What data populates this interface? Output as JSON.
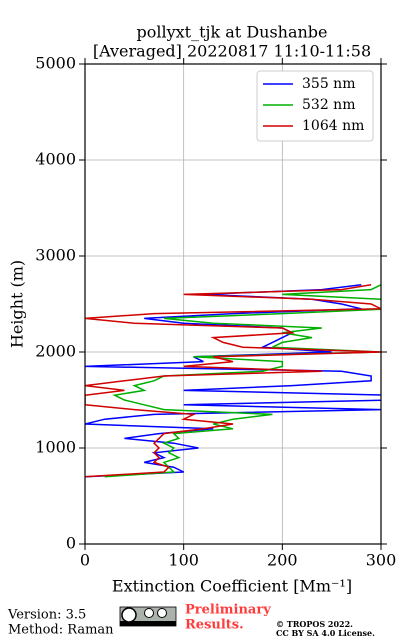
{
  "chart_data": {
    "type": "profile",
    "title": "pollyxt_tjk at Dushanbe",
    "subtitle": "[Averaged] 20220817 11:10-11:58",
    "xlabel": "Extinction Coefficient [Mm⁻¹]",
    "ylabel": "Height (m)",
    "xlim": [
      0,
      300
    ],
    "xticks": [
      0,
      100,
      200,
      300
    ],
    "ylim": [
      0,
      5000
    ],
    "yticks": [
      0,
      1000,
      2000,
      3000,
      4000,
      5000
    ],
    "grid": true,
    "legend": "upper right",
    "y": [
      700,
      750,
      800,
      850,
      900,
      950,
      1000,
      1050,
      1100,
      1150,
      1200,
      1250,
      1300,
      1350,
      1400,
      1450,
      1500,
      1550,
      1600,
      1650,
      1700,
      1750,
      1800,
      1850,
      1900,
      1950,
      2000,
      2050,
      2100,
      2150,
      2200,
      2250,
      2300,
      2350,
      2400,
      2450,
      2500,
      2550,
      2600,
      2650,
      2700
    ],
    "series": [
      {
        "name": "355 nm",
        "color": "#0000ff",
        "values": [
          0,
          100,
          90,
          60,
          80,
          70,
          115,
          90,
          40,
          75,
          130,
          0,
          20,
          70,
          300,
          100,
          310,
          310,
          100,
          210,
          290,
          290,
          260,
          0,
          120,
          110,
          250,
          180,
          190,
          200,
          210,
          200,
          100,
          60,
          150,
          280,
          260,
          230,
          120,
          240,
          280
        ]
      },
      {
        "name": "532 nm",
        "color": "#00b000",
        "values": [
          20,
          90,
          85,
          80,
          95,
          85,
          90,
          80,
          95,
          90,
          150,
          130,
          150,
          190,
          80,
          60,
          40,
          30,
          60,
          50,
          70,
          80,
          180,
          200,
          200,
          110,
          300,
          190,
          200,
          230,
          200,
          240,
          130,
          80,
          200,
          310,
          310,
          300,
          200,
          290,
          300
        ]
      },
      {
        "name": "1064 nm",
        "color": "#d00000",
        "values": [
          0,
          80,
          85,
          70,
          75,
          70,
          75,
          70,
          75,
          80,
          120,
          150,
          100,
          110,
          50,
          0,
          0,
          0,
          40,
          0,
          40,
          80,
          240,
          100,
          150,
          130,
          300,
          160,
          140,
          130,
          210,
          200,
          50,
          0,
          70,
          300,
          290,
          230,
          100,
          260,
          290
        ]
      }
    ]
  },
  "footer": {
    "version": "Version: 3.5",
    "method": "Method: Raman",
    "preliminary": "Preliminary",
    "results": "Results.",
    "copyright": "© TROPOS 2022.",
    "license": "CC BY SA 4.0 License."
  }
}
